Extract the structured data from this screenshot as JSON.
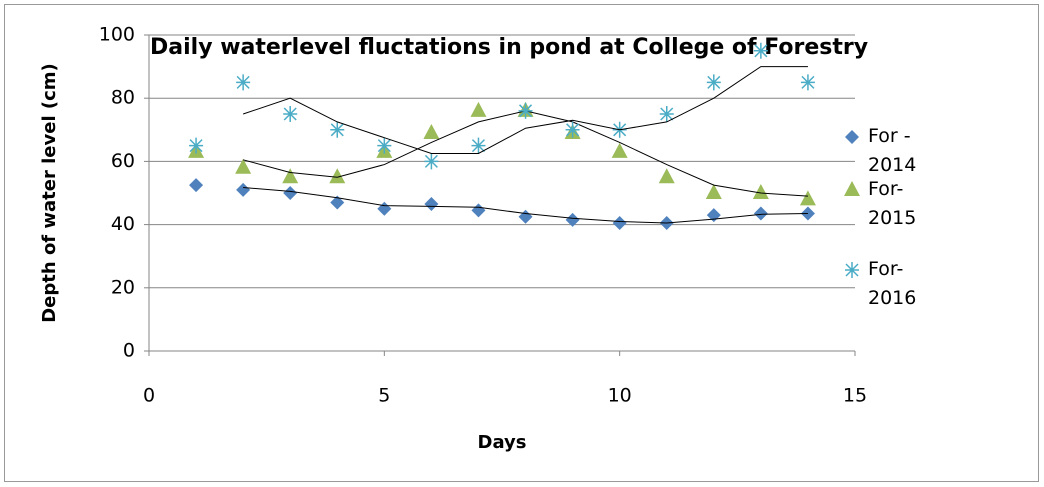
{
  "chart_data": {
    "type": "scatter",
    "title": "Daily waterlevel fluctations in pond at College of Forestry",
    "x_label": "Days",
    "y_label": "Depth of water level (cm)",
    "xlim": [
      0,
      15
    ],
    "xticks": [
      0,
      5,
      10,
      15
    ],
    "ylim": [
      0,
      100
    ],
    "yticks": [
      0,
      20,
      40,
      60,
      80,
      100
    ],
    "grid": true,
    "legend": "right",
    "trendline_period": 2,
    "x": [
      1,
      2,
      3,
      4,
      5,
      6,
      7,
      8,
      9,
      10,
      11,
      12,
      13,
      14
    ],
    "series": [
      {
        "name": "For - 2014",
        "color": "#4f81bd",
        "marker": "diamond",
        "values": [
          52.5,
          51,
          50,
          47,
          45,
          46.5,
          44.5,
          42.5,
          41.5,
          40.5,
          40.5,
          43,
          43.5,
          43.5
        ]
      },
      {
        "name": "For-2015",
        "color": "#9bbb59",
        "marker": "triangle",
        "values": [
          63,
          58,
          55,
          55,
          63,
          69,
          76,
          76,
          69,
          63,
          55,
          50,
          50,
          48
        ]
      },
      {
        "name": "For-2016",
        "color": "#4bacc6",
        "marker": "asterisk",
        "values": [
          65,
          85,
          75,
          70,
          65,
          60,
          65,
          76,
          70,
          70,
          75,
          85,
          95,
          85
        ]
      }
    ]
  }
}
